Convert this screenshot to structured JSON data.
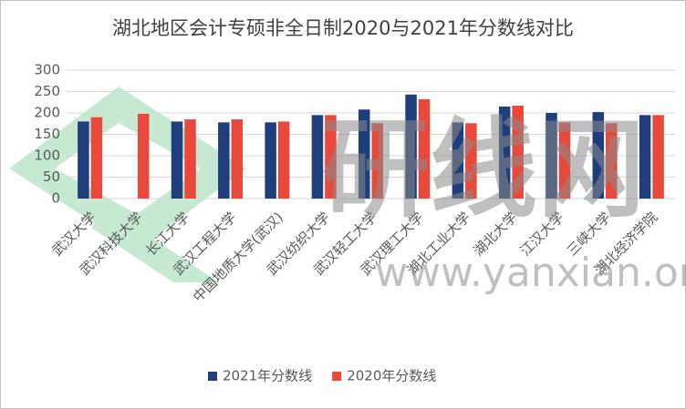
{
  "chart_data": {
    "type": "bar",
    "title": "湖北地区会计专硕非全日制2020与2021年分数线对比",
    "categories": [
      "武汉大学",
      "武汉科技大学",
      "长江大学",
      "武汉工程大学",
      "中国地质大学(武汉)",
      "武汉纺织大学",
      "武汉轻工大学",
      "武汉理工大学",
      "湖北工业大学",
      "湖北大学",
      "江汉大学",
      "三峡大学",
      "湖北经济学院"
    ],
    "series": [
      {
        "name": "2021年分数线",
        "color": "#1f3e7c",
        "values": [
          180,
          null,
          180,
          178,
          178,
          195,
          208,
          243,
          178,
          215,
          200,
          202,
          195
        ]
      },
      {
        "name": "2020年分数线",
        "color": "#e8493b",
        "values": [
          190,
          198,
          185,
          185,
          180,
          195,
          176,
          232,
          176,
          217,
          178,
          176,
          195
        ]
      }
    ],
    "ylim": [
      0,
      300
    ],
    "yticks": [
      0,
      50,
      100,
      150,
      200,
      250,
      300
    ],
    "grid": true,
    "legend": "bottom",
    "watermark": "研线网",
    "watermark_url": "www.yanxian.org"
  }
}
